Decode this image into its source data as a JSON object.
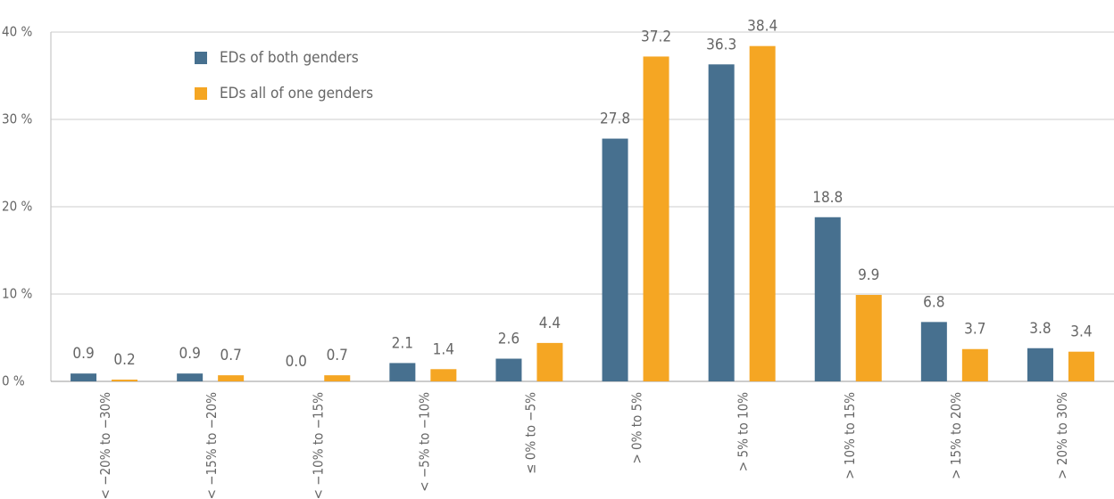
{
  "chart_data": {
    "type": "bar",
    "categories": [
      "< −20% to −30%",
      "< −15% to −20%",
      "< −10% to −15%",
      "< −5% to −10%",
      "≤ 0% to −5%",
      "> 0% to 5%",
      "> 5% to 10%",
      "> 10% to 15%",
      "> 15% to 20%",
      "> 20% to 30%"
    ],
    "series": [
      {
        "name": "EDs of both genders",
        "color": "#47708f",
        "values": [
          0.9,
          0.9,
          0.0,
          2.1,
          2.6,
          27.8,
          36.3,
          18.8,
          6.8,
          3.8
        ],
        "value_labels": [
          "0.9",
          "0.9",
          "0.0",
          "2.1",
          "2.6",
          "27.8",
          "36.3",
          "18.8",
          "6.8",
          "3.8"
        ]
      },
      {
        "name": "EDs all of one genders",
        "color": "#f5a623",
        "values": [
          0.2,
          0.7,
          0.7,
          1.4,
          4.4,
          37.2,
          38.4,
          9.9,
          3.7,
          3.4
        ],
        "value_labels": [
          "0.2",
          "0.7",
          "0.7",
          "1.4",
          "4.4",
          "37.2",
          "38.4",
          "9.9",
          "3.7",
          "3.4"
        ]
      }
    ],
    "ylim": [
      0,
      40
    ],
    "yticks": [
      {
        "value": 0,
        "label": "0 %"
      },
      {
        "value": 10,
        "label": "10 %"
      },
      {
        "value": 20,
        "label": "20 %"
      },
      {
        "value": 30,
        "label": "30 %"
      },
      {
        "value": 40,
        "label": "40 %"
      }
    ],
    "grid": true,
    "legend": "top-left"
  }
}
